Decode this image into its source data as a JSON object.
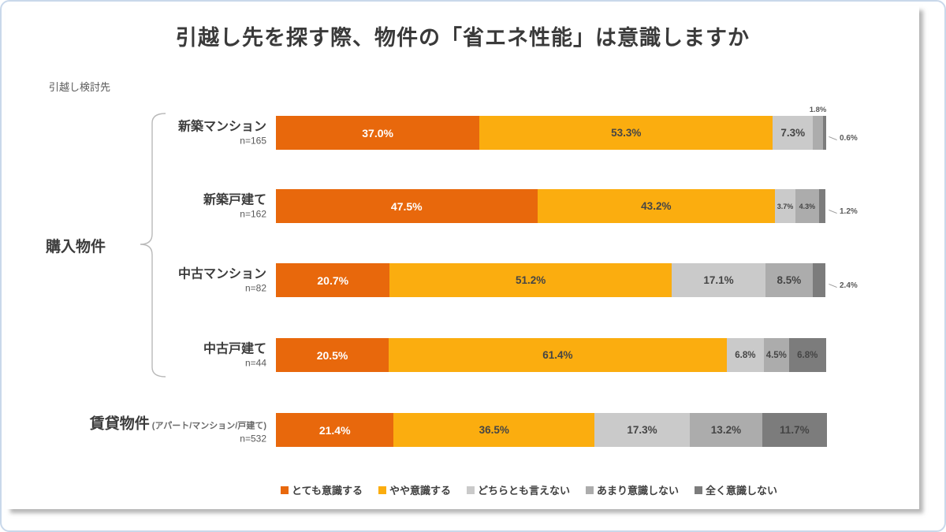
{
  "title": "引越し先を探す際、物件の「省エネ性能」は意識しますか",
  "axis_note": "引越し検討先",
  "group_label": "購入物件",
  "colors": {
    "very": "#E8680C",
    "somewhat": "#FBAD0F",
    "neither": "#CACACA",
    "not_much": "#ACACAC",
    "not_at_all": "#7C7C7C"
  },
  "legend": [
    {
      "label": "とても意識する",
      "color": "#E8680C"
    },
    {
      "label": "やや意識する",
      "color": "#FBAD0F"
    },
    {
      "label": "どちらとも言えない",
      "color": "#CACACA"
    },
    {
      "label": "あまり意識しない",
      "color": "#ACACAC"
    },
    {
      "label": "全く意識しない",
      "color": "#7C7C7C"
    }
  ],
  "rows": [
    {
      "label": "新築マンション",
      "n": "n=165",
      "big": false,
      "label_suffix": "",
      "segments": [
        {
          "key": "very",
          "value": 37.0,
          "text": "37.0%",
          "label": "inside-white"
        },
        {
          "key": "somewhat",
          "value": 53.3,
          "text": "53.3%",
          "label": "inside"
        },
        {
          "key": "neither",
          "value": 7.3,
          "text": "7.3%",
          "label": "inside"
        },
        {
          "key": "not_much",
          "value": 1.8,
          "text": "1.8%",
          "label": "above"
        },
        {
          "key": "not_at_all",
          "value": 0.6,
          "text": "0.6%",
          "label": "callout"
        }
      ]
    },
    {
      "label": "新築戸建て",
      "n": "n=162",
      "big": false,
      "label_suffix": "",
      "segments": [
        {
          "key": "very",
          "value": 47.5,
          "text": "47.5%",
          "label": "inside-white"
        },
        {
          "key": "somewhat",
          "value": 43.2,
          "text": "43.2%",
          "label": "inside"
        },
        {
          "key": "neither",
          "value": 3.7,
          "text": "3.7%",
          "label": "inside-tiny"
        },
        {
          "key": "not_much",
          "value": 4.3,
          "text": "4.3%",
          "label": "inside-tiny"
        },
        {
          "key": "not_at_all",
          "value": 1.2,
          "text": "1.2%",
          "label": "callout"
        }
      ]
    },
    {
      "label": "中古マンション",
      "n": "n=82",
      "big": false,
      "label_suffix": "",
      "segments": [
        {
          "key": "very",
          "value": 20.7,
          "text": "20.7%",
          "label": "inside-white"
        },
        {
          "key": "somewhat",
          "value": 51.2,
          "text": "51.2%",
          "label": "inside"
        },
        {
          "key": "neither",
          "value": 17.1,
          "text": "17.1%",
          "label": "inside"
        },
        {
          "key": "not_much",
          "value": 8.5,
          "text": "8.5%",
          "label": "inside"
        },
        {
          "key": "not_at_all",
          "value": 2.4,
          "text": "2.4%",
          "label": "callout"
        }
      ]
    },
    {
      "label": "中古戸建て",
      "n": "n=44",
      "big": false,
      "label_suffix": "",
      "segments": [
        {
          "key": "very",
          "value": 20.5,
          "text": "20.5%",
          "label": "inside-white"
        },
        {
          "key": "somewhat",
          "value": 61.4,
          "text": "61.4%",
          "label": "inside"
        },
        {
          "key": "neither",
          "value": 6.8,
          "text": "6.8%",
          "label": "inside-sm"
        },
        {
          "key": "not_much",
          "value": 4.5,
          "text": "4.5%",
          "label": "inside-sm"
        },
        {
          "key": "not_at_all",
          "value": 6.8,
          "text": "6.8%",
          "label": "inside-sm"
        }
      ]
    },
    {
      "label": "賃貸物件",
      "n": "n=532",
      "big": true,
      "label_suffix": "(アパート/マンション/戸建て)",
      "segments": [
        {
          "key": "very",
          "value": 21.4,
          "text": "21.4%",
          "label": "inside-white"
        },
        {
          "key": "somewhat",
          "value": 36.5,
          "text": "36.5%",
          "label": "inside"
        },
        {
          "key": "neither",
          "value": 17.3,
          "text": "17.3%",
          "label": "inside"
        },
        {
          "key": "not_much",
          "value": 13.2,
          "text": "13.2%",
          "label": "inside"
        },
        {
          "key": "not_at_all",
          "value": 11.7,
          "text": "11.7%",
          "label": "inside"
        }
      ]
    }
  ],
  "chart_data": {
    "type": "bar",
    "orientation": "horizontal",
    "stacked": true,
    "unit": "%",
    "title": "引越し先を探す際、物件の「省エネ性能」は意識しますか",
    "categories": [
      "新築マンション (n=165)",
      "新築戸建て (n=162)",
      "中古マンション (n=82)",
      "中古戸建て (n=44)",
      "賃貸物件 (アパート/マンション/戸建て) (n=532)"
    ],
    "category_groups": {
      "購入物件": [
        "新築マンション",
        "新築戸建て",
        "中古マンション",
        "中古戸建て"
      ]
    },
    "series": [
      {
        "name": "とても意識する",
        "color": "#E8680C",
        "values": [
          37.0,
          47.5,
          20.7,
          20.5,
          21.4
        ]
      },
      {
        "name": "やや意識する",
        "color": "#FBAD0F",
        "values": [
          53.3,
          43.2,
          51.2,
          61.4,
          36.5
        ]
      },
      {
        "name": "どちらとも言えない",
        "color": "#CACACA",
        "values": [
          7.3,
          3.7,
          17.1,
          6.8,
          17.3
        ]
      },
      {
        "name": "あまり意識しない",
        "color": "#ACACAC",
        "values": [
          1.8,
          4.3,
          8.5,
          4.5,
          13.2
        ]
      },
      {
        "name": "全く意識しない",
        "color": "#7C7C7C",
        "values": [
          0.6,
          1.2,
          2.4,
          6.8,
          11.7
        ]
      }
    ],
    "xlim": [
      0,
      100
    ],
    "grid": false,
    "legend_position": "bottom"
  }
}
